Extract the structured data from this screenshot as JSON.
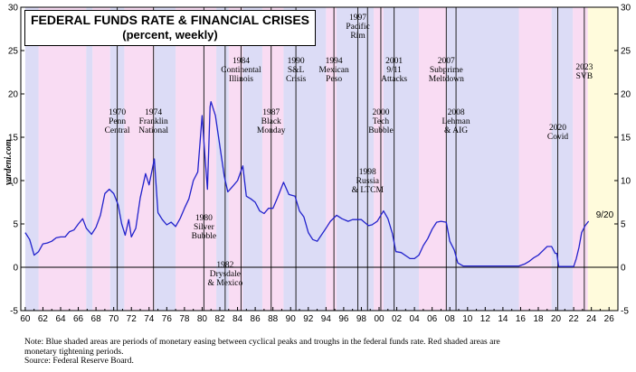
{
  "title": "FEDERAL FUNDS RATE & FINANCIAL CRISES",
  "subtitle": "(percent, weekly)",
  "watermark": "yardeni.com",
  "note_line1": "Note: Blue shaded areas are periods of monetary easing between cyclical peaks and troughs in the federal funds rate. Red shaded areas are",
  "note_line2": "monetary tightening periods.",
  "source": "Source: Federal Reserve Board.",
  "colors": {
    "easing": "#dcdcf6",
    "tightening": "#f9dcf3",
    "forecast": "#fffbdc",
    "line": "#2222cc",
    "event_line": "#222222"
  },
  "chart_data": {
    "type": "line",
    "title": "FEDERAL FUNDS RATE & FINANCIAL CRISES",
    "subtitle": "(percent, weekly)",
    "xlim": [
      1959.5,
      2027
    ],
    "ylim": [
      -5,
      30
    ],
    "x_ticks": [
      "60",
      "62",
      "64",
      "66",
      "68",
      "70",
      "72",
      "74",
      "76",
      "78",
      "80",
      "82",
      "84",
      "86",
      "88",
      "90",
      "92",
      "94",
      "96",
      "98",
      "00",
      "02",
      "04",
      "06",
      "08",
      "10",
      "12",
      "14",
      "16",
      "18",
      "20",
      "22",
      "24",
      "26"
    ],
    "y_ticks": [
      -5,
      0,
      5,
      10,
      15,
      20,
      25,
      30
    ],
    "grid": false,
    "last_value_label": "9/20",
    "series": [
      {
        "x": [
          1960.0,
          1960.5,
          1961.0,
          1961.5,
          1962.0,
          1962.5,
          1963.0,
          1963.5,
          1964.0,
          1964.5,
          1965.0,
          1965.5,
          1966.0,
          1966.5,
          1966.9,
          1967.5,
          1968.0,
          1968.5,
          1969.0,
          1969.5,
          1970.0,
          1970.5,
          1970.9,
          1971.3,
          1971.7,
          1972.0,
          1972.5,
          1973.0,
          1973.6,
          1974.0,
          1974.6,
          1975.0,
          1975.5,
          1976.0,
          1976.5,
          1977.0,
          1977.5,
          1978.0,
          1978.5,
          1979.0,
          1979.5,
          1980.0,
          1980.3,
          1980.6,
          1980.9,
          1981.0,
          1981.5,
          1982.0,
          1982.5,
          1982.9,
          1983.5,
          1984.0,
          1984.6,
          1985.0,
          1985.5,
          1986.0,
          1986.5,
          1987.0,
          1987.5,
          1988.0,
          1988.5,
          1989.2,
          1989.8,
          1990.5,
          1991.0,
          1991.5,
          1992.0,
          1992.5,
          1993.0,
          1994.0,
          1994.5,
          1995.2,
          1995.8,
          1996.5,
          1997.0,
          1997.5,
          1998.0,
          1998.8,
          1999.2,
          1999.8,
          2000.5,
          2001.0,
          2001.5,
          2001.9,
          2002.5,
          2003.5,
          2004.0,
          2004.5,
          2005.0,
          2005.5,
          2006.0,
          2006.5,
          2007.0,
          2007.6,
          2008.0,
          2008.5,
          2008.9,
          2009.5,
          2012.0,
          2015.8,
          2016.5,
          2017.0,
          2017.5,
          2018.0,
          2018.5,
          2019.0,
          2019.5,
          2019.9,
          2020.1,
          2020.3,
          2021.0,
          2022.0,
          2022.3,
          2022.6,
          2022.9,
          2023.3,
          2023.6,
          2023.7
        ],
        "y": [
          4.0,
          3.2,
          1.4,
          1.8,
          2.7,
          2.8,
          3.0,
          3.4,
          3.5,
          3.5,
          4.1,
          4.3,
          5.0,
          5.6,
          4.5,
          3.8,
          4.6,
          6.0,
          8.5,
          9.0,
          8.5,
          7.2,
          5.0,
          3.7,
          5.5,
          3.5,
          4.5,
          8.0,
          10.8,
          9.5,
          12.5,
          6.3,
          5.5,
          4.9,
          5.2,
          4.7,
          5.6,
          6.8,
          7.9,
          10.0,
          11.0,
          17.5,
          13.0,
          9.0,
          18.5,
          19.1,
          17.5,
          14.0,
          10.5,
          8.7,
          9.4,
          10.0,
          11.7,
          8.2,
          7.9,
          7.5,
          6.5,
          6.2,
          6.8,
          6.8,
          8.0,
          9.8,
          8.4,
          8.2,
          6.5,
          5.8,
          4.0,
          3.2,
          3.0,
          4.5,
          5.3,
          6.0,
          5.6,
          5.3,
          5.5,
          5.5,
          5.5,
          4.8,
          4.9,
          5.3,
          6.5,
          5.6,
          3.9,
          1.8,
          1.7,
          1.0,
          1.0,
          1.4,
          2.5,
          3.3,
          4.4,
          5.2,
          5.3,
          5.2,
          3.0,
          2.0,
          0.5,
          0.15,
          0.15,
          0.15,
          0.4,
          0.7,
          1.1,
          1.4,
          1.9,
          2.4,
          2.4,
          1.6,
          1.6,
          0.08,
          0.08,
          0.08,
          1.0,
          2.3,
          4.0,
          4.8,
          5.2,
          5.3
        ]
      }
    ],
    "easing_periods": [
      [
        1960.0,
        1961.5
      ],
      [
        1966.9,
        1967.6
      ],
      [
        1969.6,
        1971.2
      ],
      [
        1974.6,
        1977.0
      ],
      [
        1981.6,
        1983.0
      ],
      [
        1984.6,
        1986.8
      ],
      [
        1989.2,
        1994.0
      ],
      [
        1995.2,
        1999.4
      ],
      [
        2000.5,
        2004.5
      ],
      [
        2007.6,
        2015.8
      ],
      [
        2019.5,
        2021.9
      ]
    ],
    "tightening_periods": [
      [
        1961.5,
        1966.9
      ],
      [
        1967.6,
        1969.6
      ],
      [
        1971.2,
        1974.6
      ],
      [
        1977.0,
        1981.6
      ],
      [
        1983.0,
        1984.6
      ],
      [
        1986.8,
        1989.2
      ],
      [
        1994.0,
        1995.2
      ],
      [
        1999.4,
        2000.5
      ],
      [
        2004.5,
        2007.6
      ],
      [
        2015.8,
        2019.5
      ],
      [
        2021.9,
        2023.6
      ]
    ],
    "forecast_period": [
      2023.6,
      2027
    ],
    "events": [
      {
        "x": 1970.4,
        "lines": [
          "1970",
          "Penn",
          "Central"
        ]
      },
      {
        "x": 1974.5,
        "lines": [
          "1974",
          "Franklin",
          "National"
        ]
      },
      {
        "x": 1980.2,
        "lines": [
          "1980",
          "Silver",
          "Bubble"
        ]
      },
      {
        "x": 1982.6,
        "lines": [
          "1982",
          "Drysdale",
          "& Mexico"
        ]
      },
      {
        "x": 1984.4,
        "lines": [
          "1984",
          "Continental",
          "Illinois"
        ]
      },
      {
        "x": 1987.8,
        "lines": [
          "1987",
          "Black",
          "Monday"
        ]
      },
      {
        "x": 1990.6,
        "lines": [
          "1990",
          "S&L",
          "Crisis"
        ]
      },
      {
        "x": 1994.9,
        "lines": [
          "1994",
          "Mexican",
          "Peso"
        ]
      },
      {
        "x": 1997.6,
        "lines": [
          "1997",
          "Pacific",
          "Rim"
        ]
      },
      {
        "x": 1998.7,
        "lines": [
          "1998",
          "Russia",
          "& LTCM"
        ]
      },
      {
        "x": 2000.2,
        "lines": [
          "2000",
          "Tech",
          "Bubble"
        ]
      },
      {
        "x": 2001.7,
        "lines": [
          "2001",
          "9/11",
          "Attacks"
        ]
      },
      {
        "x": 2007.6,
        "lines": [
          "2007",
          "Subprime",
          "Meltdown"
        ]
      },
      {
        "x": 2008.7,
        "lines": [
          "2008",
          "Lehman",
          "& AIG"
        ]
      },
      {
        "x": 2020.2,
        "lines": [
          "2020",
          "Covid"
        ]
      },
      {
        "x": 2023.2,
        "lines": [
          "2023",
          "SVB"
        ]
      }
    ]
  }
}
